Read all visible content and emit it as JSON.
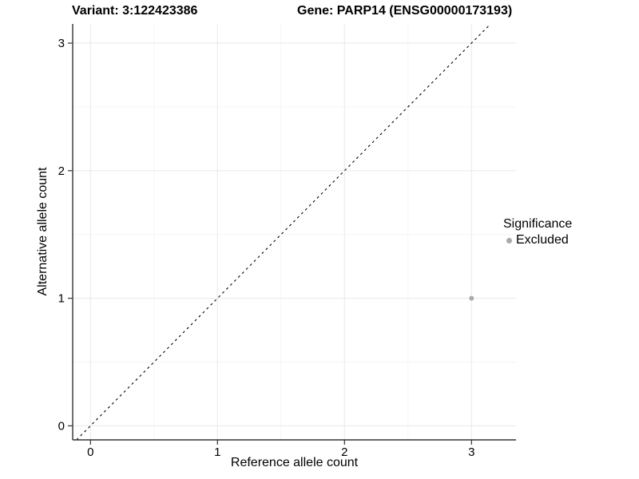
{
  "chart_data": {
    "type": "scatter",
    "title_left": "Variant: 3:122423386",
    "title_right": "Gene: PARP14 (ENSG00000173193)",
    "xlabel": "Reference allele count",
    "ylabel": "Alternative allele count",
    "xlim": [
      -0.14,
      3.35
    ],
    "ylim": [
      -0.11,
      3.15
    ],
    "xticks": [
      0,
      1,
      2,
      3
    ],
    "yticks": [
      0,
      1,
      2,
      3
    ],
    "minor_ticks": [
      0.5,
      1.5,
      2.5
    ],
    "grid": true,
    "reference_line": {
      "type": "identity",
      "style": "dashed",
      "color": "#000000"
    },
    "series": [
      {
        "name": "Excluded",
        "color": "#aaaaaa",
        "points": [
          {
            "x": 3,
            "y": 1
          }
        ]
      }
    ],
    "legend": {
      "title": "Significance",
      "position": "right",
      "entries": [
        {
          "label": "Excluded",
          "color": "#aaaaaa"
        }
      ]
    },
    "colors": {
      "grid_major": "#ebebeb",
      "grid_minor": "#f4f4f4",
      "axis": "#333333",
      "tick_label": "#000000"
    }
  }
}
